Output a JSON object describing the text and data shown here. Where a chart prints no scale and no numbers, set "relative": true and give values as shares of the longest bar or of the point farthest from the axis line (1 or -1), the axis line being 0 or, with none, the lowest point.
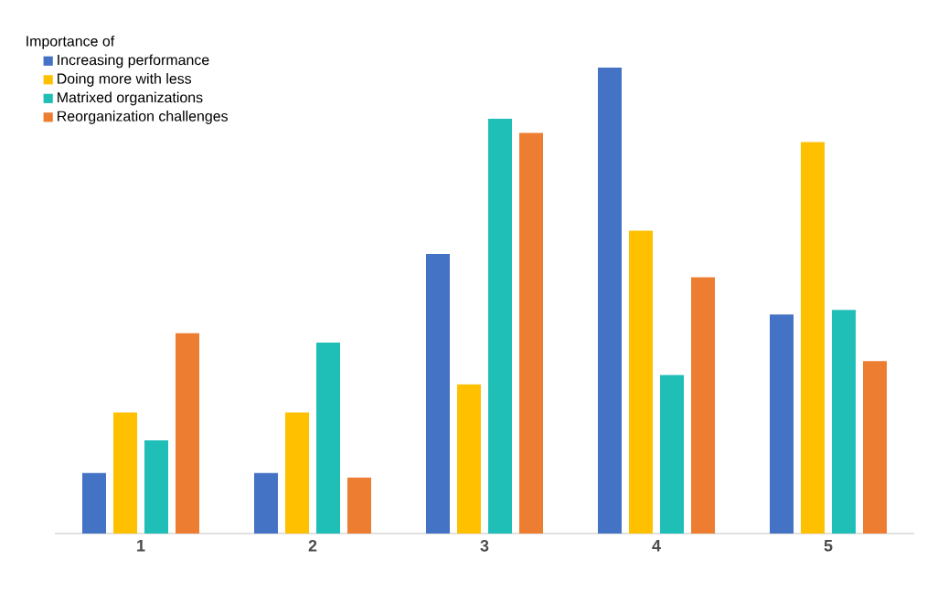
{
  "chart_data": {
    "type": "bar",
    "relative": true,
    "legend_title": "Importance of",
    "legend": "top left",
    "categories": [
      "1",
      "2",
      "3",
      "4",
      "5"
    ],
    "series": [
      {
        "name": "Increasing performance",
        "color": "#4472c4",
        "values": [
          0.13,
          0.13,
          0.6,
          1,
          0.47
        ]
      },
      {
        "name": "Doing more with less",
        "color": "#ffc000",
        "values": [
          0.26,
          0.26,
          0.32,
          0.65,
          0.84
        ]
      },
      {
        "name": "Matrixed organizations",
        "color": "#1fbfb8",
        "values": [
          0.2,
          0.41,
          0.89,
          0.34,
          0.48
        ]
      },
      {
        "name": "Reorganization challenges",
        "color": "#ed7d31",
        "values": [
          0.43,
          0.12,
          0.86,
          0.55,
          0.37
        ]
      }
    ]
  }
}
